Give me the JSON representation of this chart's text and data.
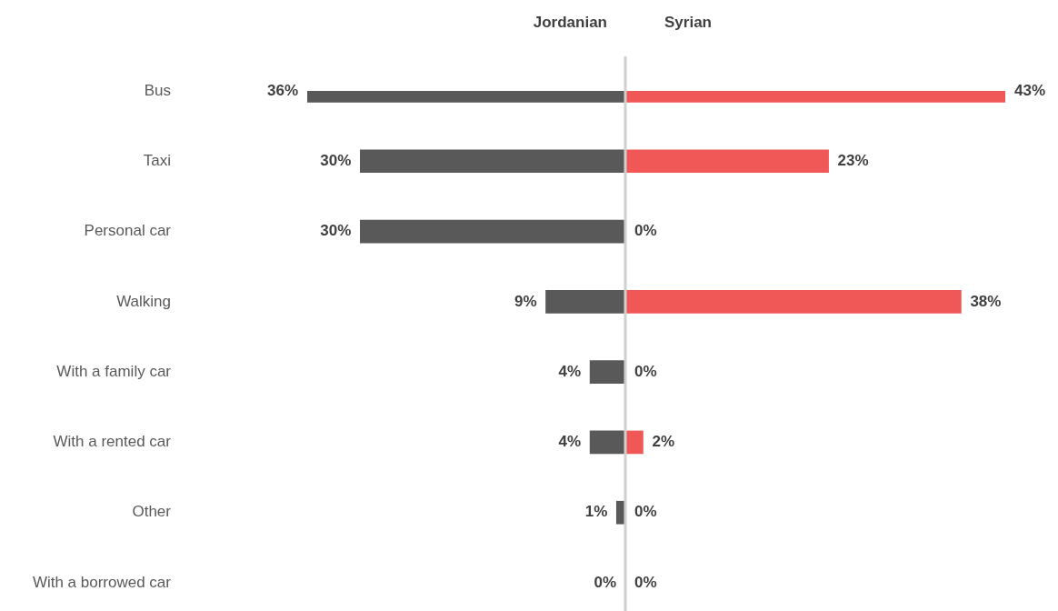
{
  "chart_data": [
    {
      "type": "bar",
      "orientation": "horizontal",
      "title": "Jordanian",
      "categories": [
        "Bus",
        "Taxi",
        "Personal car",
        "Walking",
        "With a family car",
        "With a rented car",
        "Other",
        "With a borrowed car"
      ],
      "values": [
        36,
        30,
        30,
        9,
        4,
        4,
        1,
        0
      ],
      "value_labels": [
        "36%",
        "30%",
        "30%",
        "9%",
        "4%",
        "4%",
        "1%",
        "0%"
      ],
      "color": "#595959",
      "xlim": [
        36,
        0
      ],
      "legend": false,
      "tick_labels": "y"
    },
    {
      "type": "bar",
      "orientation": "horizontal",
      "title": "Syrian",
      "categories": [
        null,
        null,
        null,
        null,
        null,
        null,
        null,
        null
      ],
      "values": [
        43,
        23,
        0,
        38,
        0,
        2,
        0,
        0
      ],
      "value_labels": [
        "43%",
        "23%",
        "0%",
        "38%",
        "0%",
        "2%",
        "0%",
        "0%"
      ],
      "color": "#ef5856",
      "xlim": [
        0,
        43
      ],
      "legend": false,
      "tick_labels": false
    }
  ]
}
